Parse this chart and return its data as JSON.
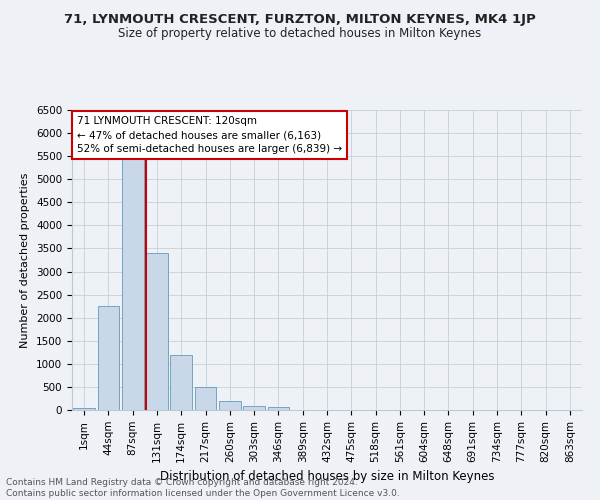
{
  "title1": "71, LYNMOUTH CRESCENT, FURZTON, MILTON KEYNES, MK4 1JP",
  "title2": "Size of property relative to detached houses in Milton Keynes",
  "xlabel": "Distribution of detached houses by size in Milton Keynes",
  "ylabel": "Number of detached properties",
  "footer1": "Contains HM Land Registry data © Crown copyright and database right 2024.",
  "footer2": "Contains public sector information licensed under the Open Government Licence v3.0.",
  "annotation_line1": "71 LYNMOUTH CRESCENT: 120sqm",
  "annotation_line2": "← 47% of detached houses are smaller (6,163)",
  "annotation_line3": "52% of semi-detached houses are larger (6,839) →",
  "bar_categories": [
    "1sqm",
    "44sqm",
    "87sqm",
    "131sqm",
    "174sqm",
    "217sqm",
    "260sqm",
    "303sqm",
    "346sqm",
    "389sqm",
    "432sqm",
    "475sqm",
    "518sqm",
    "561sqm",
    "604sqm",
    "648sqm",
    "691sqm",
    "734sqm",
    "777sqm",
    "820sqm",
    "863sqm"
  ],
  "bar_values": [
    50,
    2250,
    5500,
    3400,
    1200,
    500,
    200,
    80,
    60,
    0,
    0,
    0,
    0,
    0,
    0,
    0,
    0,
    0,
    0,
    0,
    0
  ],
  "bar_color": "#c8d8e8",
  "bar_edge_color": "#6699bb",
  "vline_color": "#cc0000",
  "ylim": [
    0,
    6500
  ],
  "yticks": [
    0,
    500,
    1000,
    1500,
    2000,
    2500,
    3000,
    3500,
    4000,
    4500,
    5000,
    5500,
    6000,
    6500
  ],
  "bg_color": "#eef2f7",
  "annotation_box_color": "#ffffff",
  "annotation_box_edge_color": "#cc0000",
  "title1_fontsize": 9.5,
  "title2_fontsize": 8.5,
  "annotation_fontsize": 7.5,
  "axis_fontsize": 7.5,
  "ylabel_fontsize": 8,
  "xlabel_fontsize": 8.5,
  "footer_fontsize": 6.5
}
